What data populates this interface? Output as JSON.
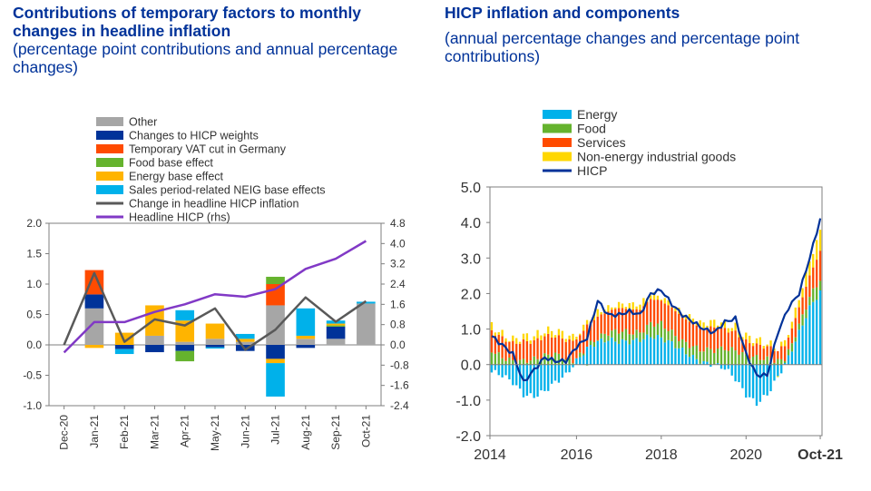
{
  "left": {
    "title": "Contributions of temporary factors to monthly changes in headline inflation",
    "subtitle": "(percentage point contributions and annual percentage changes)"
  },
  "right": {
    "title": "HICP inflation and components",
    "subtitle": "(annual percentage changes and percentage point contributions)"
  },
  "chart_data": [
    {
      "type": "bar",
      "stacked": true,
      "categories": [
        "Dec-20",
        "Jan-21",
        "Feb-21",
        "Mar-21",
        "Apr-21",
        "May-21",
        "Jun-21",
        "Jul-21",
        "Aug-21",
        "Sep-21",
        "Oct-21"
      ],
      "ylim": [
        -1.0,
        2.0
      ],
      "yticks": [
        "2.0",
        "1.5",
        "1.0",
        "0.5",
        "0.0",
        "-0.5",
        "-1.0"
      ],
      "y2lim": [
        -2.4,
        4.8
      ],
      "y2ticks": [
        "4.8",
        "4.0",
        "3.2",
        "2.4",
        "1.6",
        "0.8",
        "0.0",
        "-0.8",
        "-1.6",
        "-2.4"
      ],
      "legend_position": "top",
      "series": [
        {
          "name": "Other",
          "color": "#a6a6a6",
          "values": [
            0,
            0.6,
            0,
            0.15,
            0.05,
            0.1,
            0.05,
            0.65,
            0.1,
            0.1,
            0.68
          ]
        },
        {
          "name": "Changes to HICP weights",
          "color": "#003399",
          "values": [
            0,
            0.23,
            -0.07,
            -0.12,
            -0.1,
            -0.04,
            -0.1,
            -0.23,
            -0.05,
            0.2,
            0
          ]
        },
        {
          "name": "Temporary VAT cut in Germany",
          "color": "#ff4b00",
          "values": [
            0,
            0.4,
            0,
            0,
            0,
            0,
            0,
            0.35,
            0,
            0,
            0
          ]
        },
        {
          "name": "Food base effect",
          "color": "#65b32e",
          "values": [
            0,
            0,
            0,
            0,
            -0.17,
            0,
            0,
            0.12,
            0,
            0.02,
            0
          ]
        },
        {
          "name": "Energy base effect",
          "color": "#ffb400",
          "values": [
            0,
            -0.05,
            0.2,
            0.5,
            0.35,
            0.25,
            0.05,
            -0.07,
            0.05,
            0.03,
            0
          ]
        },
        {
          "name": "Sales period-related NEIG base effects",
          "color": "#00b1ea",
          "values": [
            0,
            0,
            -0.08,
            0,
            0.17,
            -0.02,
            0.08,
            -0.55,
            0.45,
            0.05,
            0.03
          ]
        }
      ],
      "lines": [
        {
          "name": "Change in headline HICP inflation",
          "color": "#595959",
          "axis": "left",
          "values": [
            0,
            1.18,
            0.05,
            0.42,
            0.32,
            0.6,
            -0.08,
            0.25,
            0.78,
            0.38,
            0.72
          ]
        },
        {
          "name": "Headline HICP (rhs)",
          "color": "#8139c6",
          "axis": "right",
          "values": [
            -0.3,
            0.9,
            0.9,
            1.3,
            1.6,
            2.0,
            1.9,
            2.2,
            3.0,
            3.4,
            4.1
          ]
        }
      ]
    },
    {
      "type": "bar",
      "stacked": true,
      "x_start": "2014-01",
      "x_end": "2021-10",
      "xticks": [
        "2014",
        "2016",
        "2018",
        "2020",
        "Oct-21"
      ],
      "ylim": [
        -2.0,
        5.0
      ],
      "yticks": [
        "5.0",
        "4.0",
        "3.0",
        "2.0",
        "1.0",
        "0.0",
        "-1.0",
        "-2.0"
      ],
      "legend_position": "top-left",
      "series": [
        {
          "name": "Energy",
          "color": "#00b1ea",
          "anchors": [
            -0.2,
            -0.3,
            -0.5,
            -0.85,
            -0.9,
            -0.75,
            -0.5,
            -0.3,
            0.1,
            0.45,
            0.65,
            0.7,
            0.65,
            0.65,
            0.7,
            0.8,
            0.75,
            0.6,
            0.4,
            0.2,
            0.05,
            0,
            -0.1,
            -0.4,
            -0.85,
            -1.1,
            -0.85,
            -0.35,
            0.2,
            0.9,
            1.6,
            2.05
          ]
        },
        {
          "name": "Food",
          "color": "#65b32e",
          "anchors": [
            0.4,
            0.2,
            0.1,
            0.1,
            0.15,
            0.25,
            0.3,
            0.15,
            0.05,
            0.05,
            0.1,
            0.2,
            0.3,
            0.25,
            0.2,
            0.35,
            0.4,
            0.3,
            0.25,
            0.3,
            0.35,
            0.4,
            0.45,
            0.4,
            0.25,
            0.2,
            0.15,
            0.1,
            0.15,
            0.2,
            0.3,
            0.35
          ]
        },
        {
          "name": "Services",
          "color": "#ff4b00",
          "anchors": [
            0.55,
            0.55,
            0.5,
            0.55,
            0.5,
            0.55,
            0.5,
            0.55,
            0.55,
            0.6,
            0.6,
            0.6,
            0.65,
            0.65,
            0.65,
            0.7,
            0.65,
            0.7,
            0.7,
            0.65,
            0.6,
            0.65,
            0.55,
            0.5,
            0.4,
            0.35,
            0.35,
            0.3,
            0.4,
            0.5,
            0.6,
            0.8
          ]
        },
        {
          "name": "Non-energy industrial goods",
          "color": "#ffd700",
          "anchors": [
            0.15,
            0.1,
            0.1,
            0.15,
            0.15,
            0.15,
            0.15,
            0.15,
            0.1,
            0.1,
            0.15,
            0.1,
            0.1,
            0.15,
            0.15,
            0.15,
            0.1,
            0.1,
            0.1,
            0.15,
            0.15,
            0.15,
            0.15,
            0.15,
            0.15,
            0.15,
            0.1,
            0.05,
            0.15,
            0.25,
            0.4,
            0.55
          ]
        }
      ],
      "lines": [
        {
          "name": "HICP",
          "color": "#003299",
          "anchors": [
            0.8,
            0.55,
            0.3,
            -0.5,
            -0.15,
            0.2,
            0.1,
            0.1,
            0.5,
            0.75,
            1.8,
            1.4,
            1.4,
            1.5,
            1.4,
            2.0,
            2.1,
            1.7,
            1.4,
            1.2,
            1.0,
            0.9,
            1.2,
            1.3,
            0.3,
            -0.3,
            -0.3,
            0.9,
            1.6,
            2.0,
            3.0,
            4.1
          ]
        }
      ]
    }
  ]
}
